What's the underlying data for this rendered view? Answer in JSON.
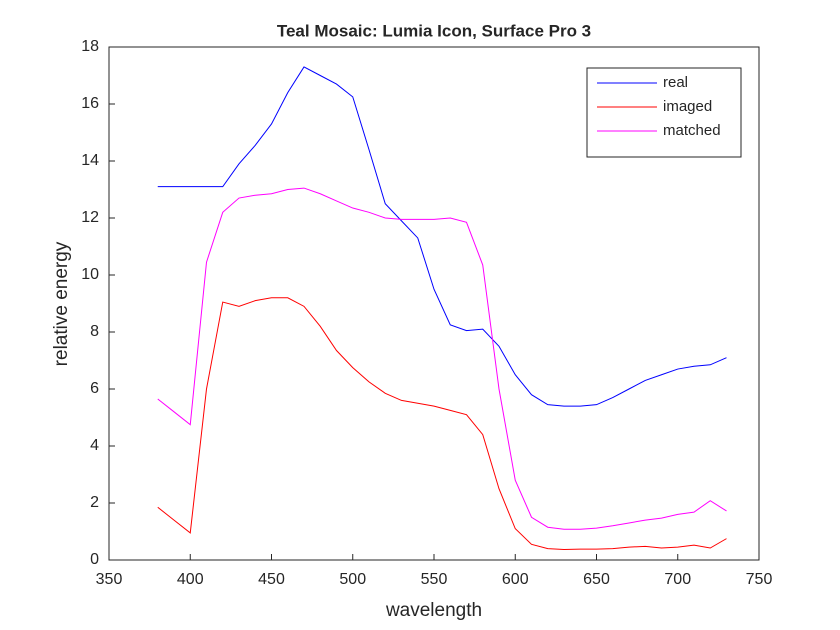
{
  "chart_data": {
    "type": "line",
    "title": "Teal Mosaic: Lumia Icon, Surface Pro 3",
    "x_label": "wavelength",
    "y_label": "relative energy",
    "x": [
      380,
      390,
      400,
      410,
      420,
      430,
      440,
      450,
      460,
      470,
      480,
      490,
      500,
      510,
      520,
      530,
      540,
      550,
      560,
      570,
      580,
      590,
      600,
      610,
      620,
      630,
      640,
      650,
      660,
      670,
      680,
      690,
      700,
      710,
      720,
      730
    ],
    "series": [
      {
        "name": "real",
        "color": "#0000ff",
        "values": [
          13.1,
          13.1,
          13.1,
          13.1,
          13.1,
          13.9,
          14.55,
          15.3,
          16.4,
          17.3,
          17.0,
          16.7,
          16.25,
          14.4,
          12.5,
          11.9,
          11.3,
          9.5,
          8.25,
          8.05,
          8.1,
          7.5,
          6.5,
          5.8,
          5.45,
          5.4,
          5.4,
          5.45,
          5.7,
          6.0,
          6.3,
          6.5,
          6.7,
          6.8,
          6.85,
          7.1
        ]
      },
      {
        "name": "imaged",
        "color": "#ff0000",
        "values": [
          1.85,
          1.4,
          0.95,
          6.0,
          9.05,
          8.9,
          9.1,
          9.2,
          9.2,
          8.9,
          8.2,
          7.35,
          6.75,
          6.25,
          5.85,
          5.6,
          5.5,
          5.4,
          5.25,
          5.1,
          4.4,
          2.5,
          1.1,
          0.55,
          0.4,
          0.37,
          0.38,
          0.38,
          0.4,
          0.45,
          0.48,
          0.42,
          0.45,
          0.52,
          0.42,
          0.75
        ]
      },
      {
        "name": "matched",
        "color": "#ff00ff",
        "values": [
          5.65,
          5.2,
          4.75,
          10.45,
          12.2,
          12.7,
          12.8,
          12.85,
          13.0,
          13.05,
          12.85,
          12.6,
          12.35,
          12.2,
          12.0,
          11.95,
          11.95,
          11.95,
          12.0,
          11.85,
          10.35,
          6.0,
          2.8,
          1.5,
          1.15,
          1.08,
          1.08,
          1.12,
          1.2,
          1.3,
          1.4,
          1.47,
          1.6,
          1.68,
          2.08,
          1.72
        ]
      }
    ],
    "xlim": [
      350,
      750
    ],
    "xticks": [
      350,
      400,
      450,
      500,
      550,
      600,
      650,
      700,
      750
    ],
    "ylim": [
      0,
      18
    ],
    "yticks": [
      0,
      2,
      4,
      6,
      8,
      10,
      12,
      14,
      16,
      18
    ],
    "grid": false,
    "legend": "northeast"
  }
}
